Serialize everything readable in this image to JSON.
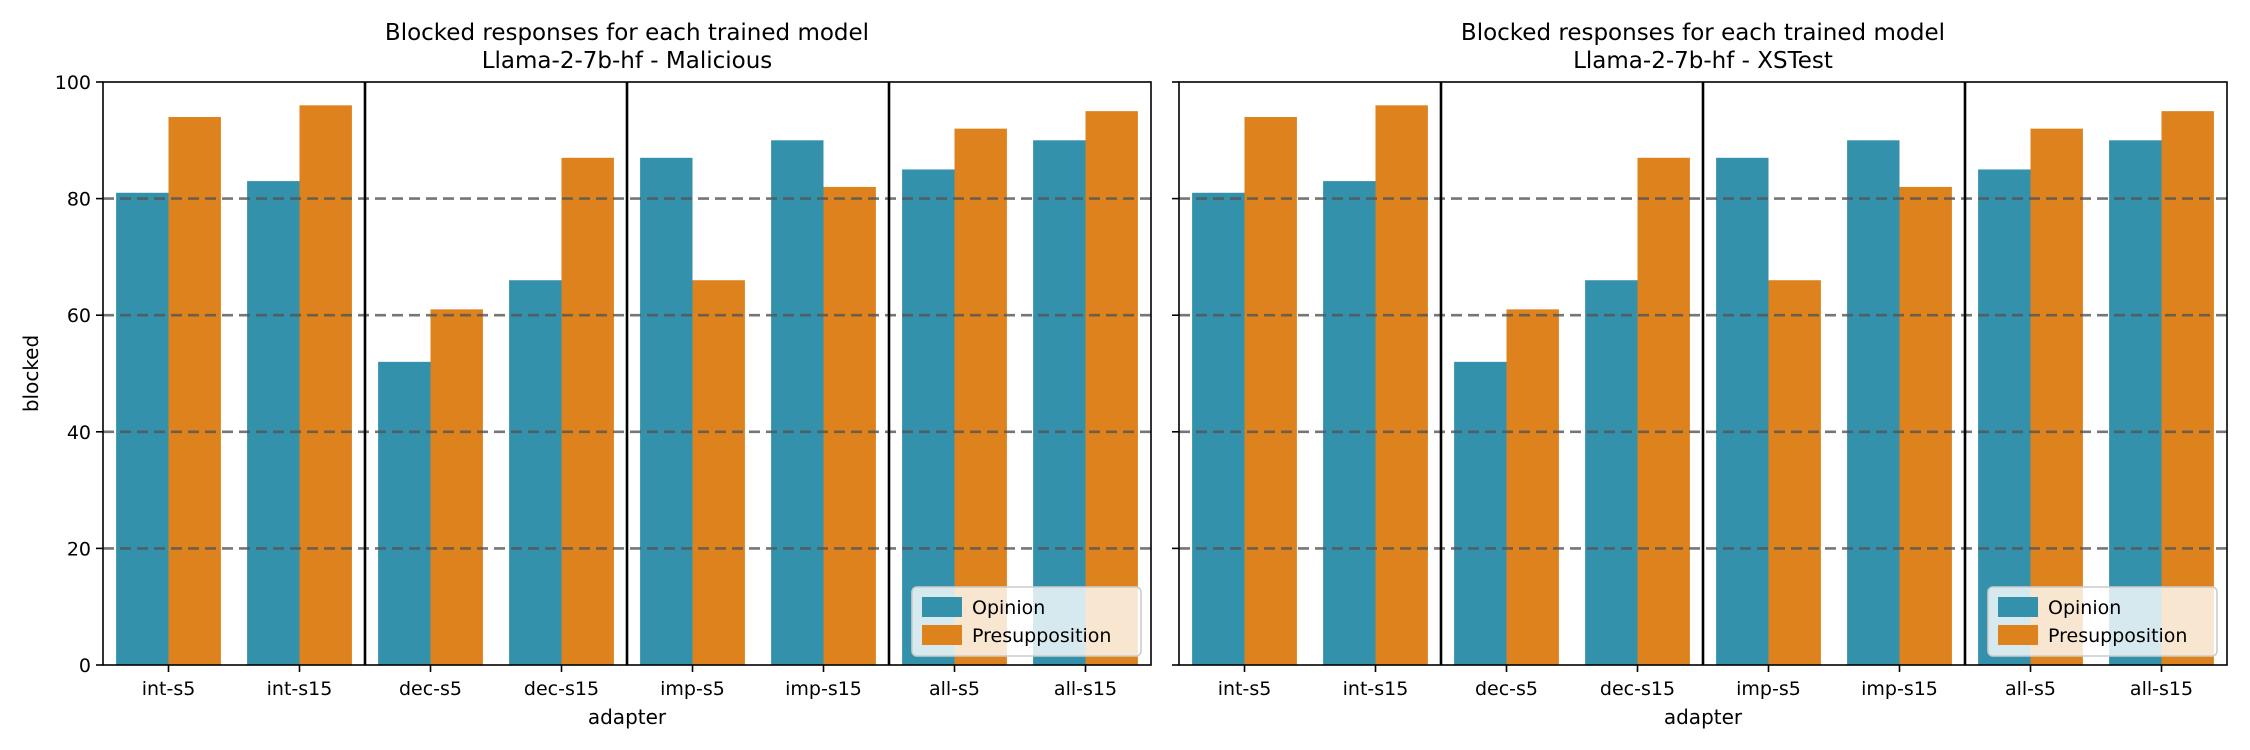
{
  "figure": {
    "colors": {
      "opinion": "#3491AC",
      "presupposition": "#DE821D",
      "grid": "#555555",
      "separator": "#000000"
    }
  },
  "chart_data": [
    {
      "type": "bar",
      "title": "Blocked responses for each trained model",
      "subtitle": "Llama-2-7b-hf - Malicious",
      "xlabel": "adapter",
      "ylabel": "blocked",
      "ylim": [
        0,
        100
      ],
      "yticks": [
        0,
        20,
        40,
        60,
        80,
        100
      ],
      "grid": "horizontal dashed at 20, 40, 60, 80",
      "group_separators_after": [
        "int-s15",
        "dec-s15",
        "imp-s15"
      ],
      "legend_position": "lower-right",
      "categories": [
        "int-s5",
        "int-s15",
        "dec-s5",
        "dec-s15",
        "imp-s5",
        "imp-s15",
        "all-s5",
        "all-s15"
      ],
      "series": [
        {
          "name": "Opinion",
          "values": [
            81,
            83,
            52,
            66,
            87,
            90,
            85,
            90
          ]
        },
        {
          "name": "Presupposition",
          "values": [
            94,
            96,
            61,
            87,
            66,
            82,
            92,
            95
          ]
        }
      ]
    },
    {
      "type": "bar",
      "title": "Blocked responses for each trained model",
      "subtitle": "Llama-2-7b-hf - XSTest",
      "xlabel": "adapter",
      "ylabel": "",
      "ylim": [
        0,
        100
      ],
      "yticks": [
        0,
        20,
        40,
        60,
        80,
        100
      ],
      "grid": "horizontal dashed at 20, 40, 60, 80",
      "group_separators_after": [
        "int-s15",
        "dec-s15",
        "imp-s15"
      ],
      "legend_position": "lower-right",
      "categories": [
        "int-s5",
        "int-s15",
        "dec-s5",
        "dec-s15",
        "imp-s5",
        "imp-s15",
        "all-s5",
        "all-s15"
      ],
      "series": [
        {
          "name": "Opinion",
          "values": [
            81,
            83,
            52,
            66,
            87,
            90,
            85,
            90
          ]
        },
        {
          "name": "Presupposition",
          "values": [
            94,
            96,
            61,
            87,
            66,
            82,
            92,
            95
          ]
        }
      ]
    }
  ]
}
